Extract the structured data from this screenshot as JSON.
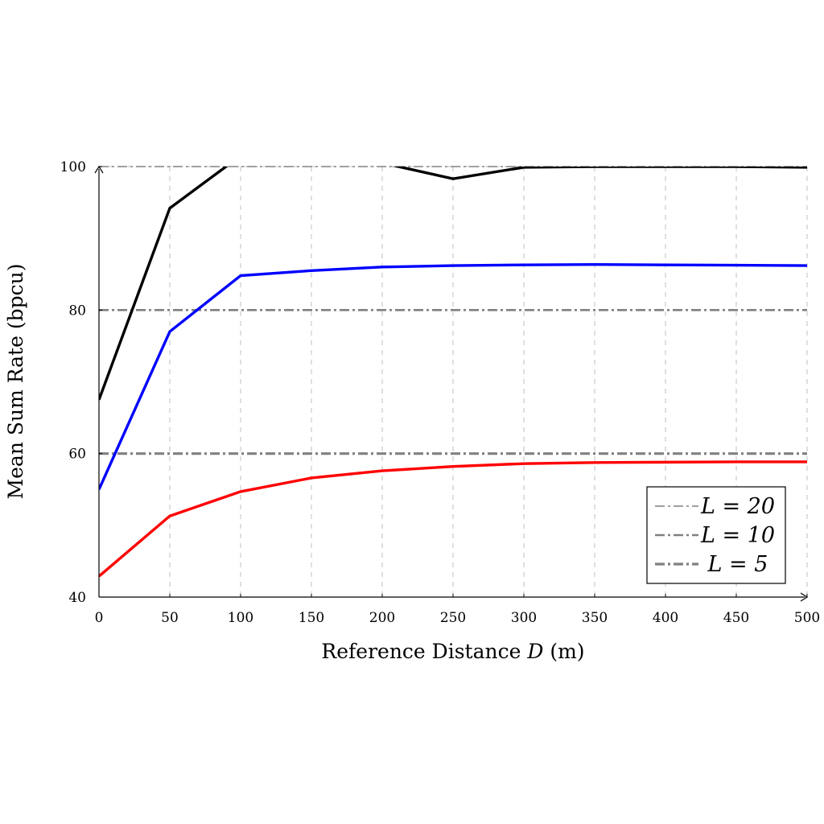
{
  "chart_data": {
    "type": "line",
    "xlabel": "Reference Distance D (m)",
    "xlabel_parts": {
      "prefix": "Reference Distance ",
      "var": "D",
      "suffix": " (m)"
    },
    "ylabel": "Mean Sum Rate (bpcu)",
    "xlim": [
      0,
      500
    ],
    "ylim": [
      40,
      100
    ],
    "xticks": [
      0,
      50,
      100,
      150,
      200,
      250,
      300,
      350,
      400,
      450,
      500
    ],
    "yticks": [
      40,
      60,
      80,
      100
    ],
    "grid": "vertical dashed",
    "legend_position": "bottom-right",
    "series": [
      {
        "color": "#000000",
        "x": [
          0,
          50,
          100,
          200,
          250,
          300,
          350,
          400,
          450,
          500
        ],
        "y": [
          67.5,
          94.2,
          101.5,
          100.5,
          98.3,
          99.9,
          100.0,
          100.0,
          100.0,
          99.9
        ]
      },
      {
        "color": "#0000ff",
        "x": [
          0,
          50,
          100,
          150,
          200,
          250,
          300,
          350,
          400,
          450,
          500
        ],
        "y": [
          55.0,
          77.0,
          84.8,
          85.5,
          86.0,
          86.2,
          86.3,
          86.35,
          86.3,
          86.25,
          86.2
        ]
      },
      {
        "color": "#ff0000",
        "x": [
          0,
          50,
          100,
          150,
          200,
          250,
          300,
          350,
          400,
          450,
          500
        ],
        "y": [
          42.9,
          51.3,
          54.7,
          56.6,
          57.6,
          58.2,
          58.6,
          58.75,
          58.8,
          58.85,
          58.85
        ]
      }
    ],
    "reference_lines": [
      {
        "name": "L = 20",
        "y": 100,
        "color": "#808080"
      },
      {
        "name": "L = 10",
        "y": 80,
        "color": "#808080"
      },
      {
        "name": "L = 5",
        "y": 60,
        "color": "#808080"
      }
    ]
  }
}
